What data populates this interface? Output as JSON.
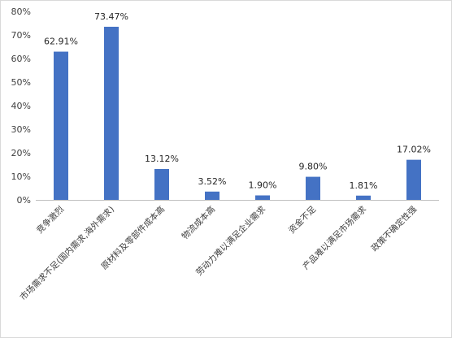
{
  "chart_data": {
    "type": "bar",
    "categories": [
      "竞争激烈",
      "市场需求不足(国内需求,海外需求)",
      "原材料及零部件成本高",
      "物流成本高",
      "劳动力难以满足企业需求",
      "资金不足",
      "产品难以满足市场需求",
      "政策不确定性强"
    ],
    "values": [
      62.91,
      73.47,
      13.12,
      3.52,
      1.9,
      9.8,
      1.81,
      17.02
    ],
    "data_labels": [
      "62.91%",
      "73.47%",
      "13.12%",
      "3.52%",
      "1.90%",
      "9.80%",
      "1.81%",
      "17.02%"
    ],
    "y_ticks": [
      0,
      10,
      20,
      30,
      40,
      50,
      60,
      70,
      80
    ],
    "y_tick_labels": [
      "0%",
      "10%",
      "20%",
      "30%",
      "40%",
      "50%",
      "60%",
      "70%",
      "80%"
    ],
    "ylim": [
      0,
      80
    ],
    "bar_color": "#4472C4",
    "axis_color": "#bfbfbf",
    "grid": false,
    "legend": "none",
    "title": "",
    "xlabel": "",
    "ylabel": ""
  }
}
